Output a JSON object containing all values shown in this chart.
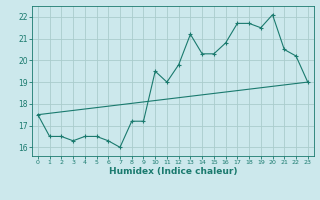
{
  "title": "",
  "xlabel": "Humidex (Indice chaleur)",
  "ylabel": "",
  "background_color": "#cce8ec",
  "grid_color": "#aacccc",
  "line_color": "#1a7a6e",
  "xlim": [
    -0.5,
    23.5
  ],
  "ylim": [
    15.6,
    22.5
  ],
  "yticks": [
    16,
    17,
    18,
    19,
    20,
    21,
    22
  ],
  "xticks": [
    0,
    1,
    2,
    3,
    4,
    5,
    6,
    7,
    8,
    9,
    10,
    11,
    12,
    13,
    14,
    15,
    16,
    17,
    18,
    19,
    20,
    21,
    22,
    23
  ],
  "series1_x": [
    0,
    1,
    2,
    3,
    4,
    5,
    6,
    7,
    8,
    9,
    10,
    11,
    12,
    13,
    14,
    15,
    16,
    17,
    18,
    19,
    20,
    21,
    22,
    23
  ],
  "series1_y": [
    17.5,
    16.5,
    16.5,
    16.3,
    16.5,
    16.5,
    16.3,
    16.0,
    17.2,
    17.2,
    19.5,
    19.0,
    19.8,
    21.2,
    20.3,
    20.3,
    20.8,
    21.7,
    21.7,
    21.5,
    22.1,
    20.5,
    20.2,
    19.0
  ],
  "series2_x": [
    0,
    23
  ],
  "series2_y": [
    17.5,
    19.0
  ],
  "marker": "+"
}
